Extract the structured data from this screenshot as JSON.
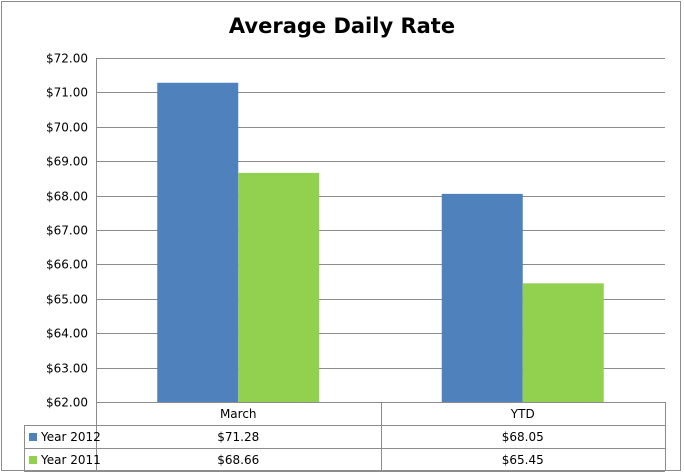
{
  "chart_data": {
    "type": "bar",
    "title": "Average Daily Rate",
    "categories": [
      "March",
      "YTD"
    ],
    "series": [
      {
        "name": "Year 2012",
        "color": "#4f81bd",
        "values": [
          71.28,
          68.05
        ],
        "value_labels": [
          "$71.28",
          "$68.05"
        ]
      },
      {
        "name": "Year 2011",
        "color": "#92d050",
        "values": [
          68.66,
          65.45
        ],
        "value_labels": [
          "$68.66",
          "$65.45"
        ]
      }
    ],
    "ylim": [
      62,
      72
    ],
    "y_ticks": [
      62,
      63,
      64,
      65,
      66,
      67,
      68,
      69,
      70,
      71,
      72
    ],
    "y_tick_labels": [
      "$62.00",
      "$63.00",
      "$64.00",
      "$65.00",
      "$66.00",
      "$67.00",
      "$68.00",
      "$69.00",
      "$70.00",
      "$71.00",
      "$72.00"
    ],
    "grid": true,
    "legend": "data-table"
  }
}
